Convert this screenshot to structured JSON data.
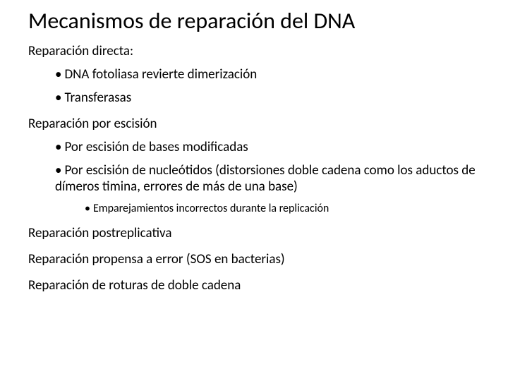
{
  "title": "Mecanismos de reparación del DNA",
  "sections": {
    "s1": {
      "heading": "Reparación directa:",
      "b1": "DNA fotoliasa revierte dimerización",
      "b2": "Transferasas"
    },
    "s2": {
      "heading": "Reparación por escisión",
      "b1": "Por escisión de bases modificadas",
      "b2": "Por escisión de nucleótidos (distorsiones doble cadena como los aductos de dímeros timina, errores de más de una base)",
      "sub1": "Emparejamientos incorrectos durante la replicación"
    },
    "s3": {
      "heading": "Reparación postreplicativa"
    },
    "s4": {
      "heading": "Reparación propensa a error (SOS en bacterias)"
    },
    "s5": {
      "heading": "Reparación de roturas de doble cadena"
    }
  },
  "colors": {
    "text": "#000000",
    "background": "#ffffff"
  },
  "typography": {
    "title_fontsize": 32,
    "body_fontsize": 19,
    "sub_fontsize": 16,
    "font_family": "Calibri"
  }
}
